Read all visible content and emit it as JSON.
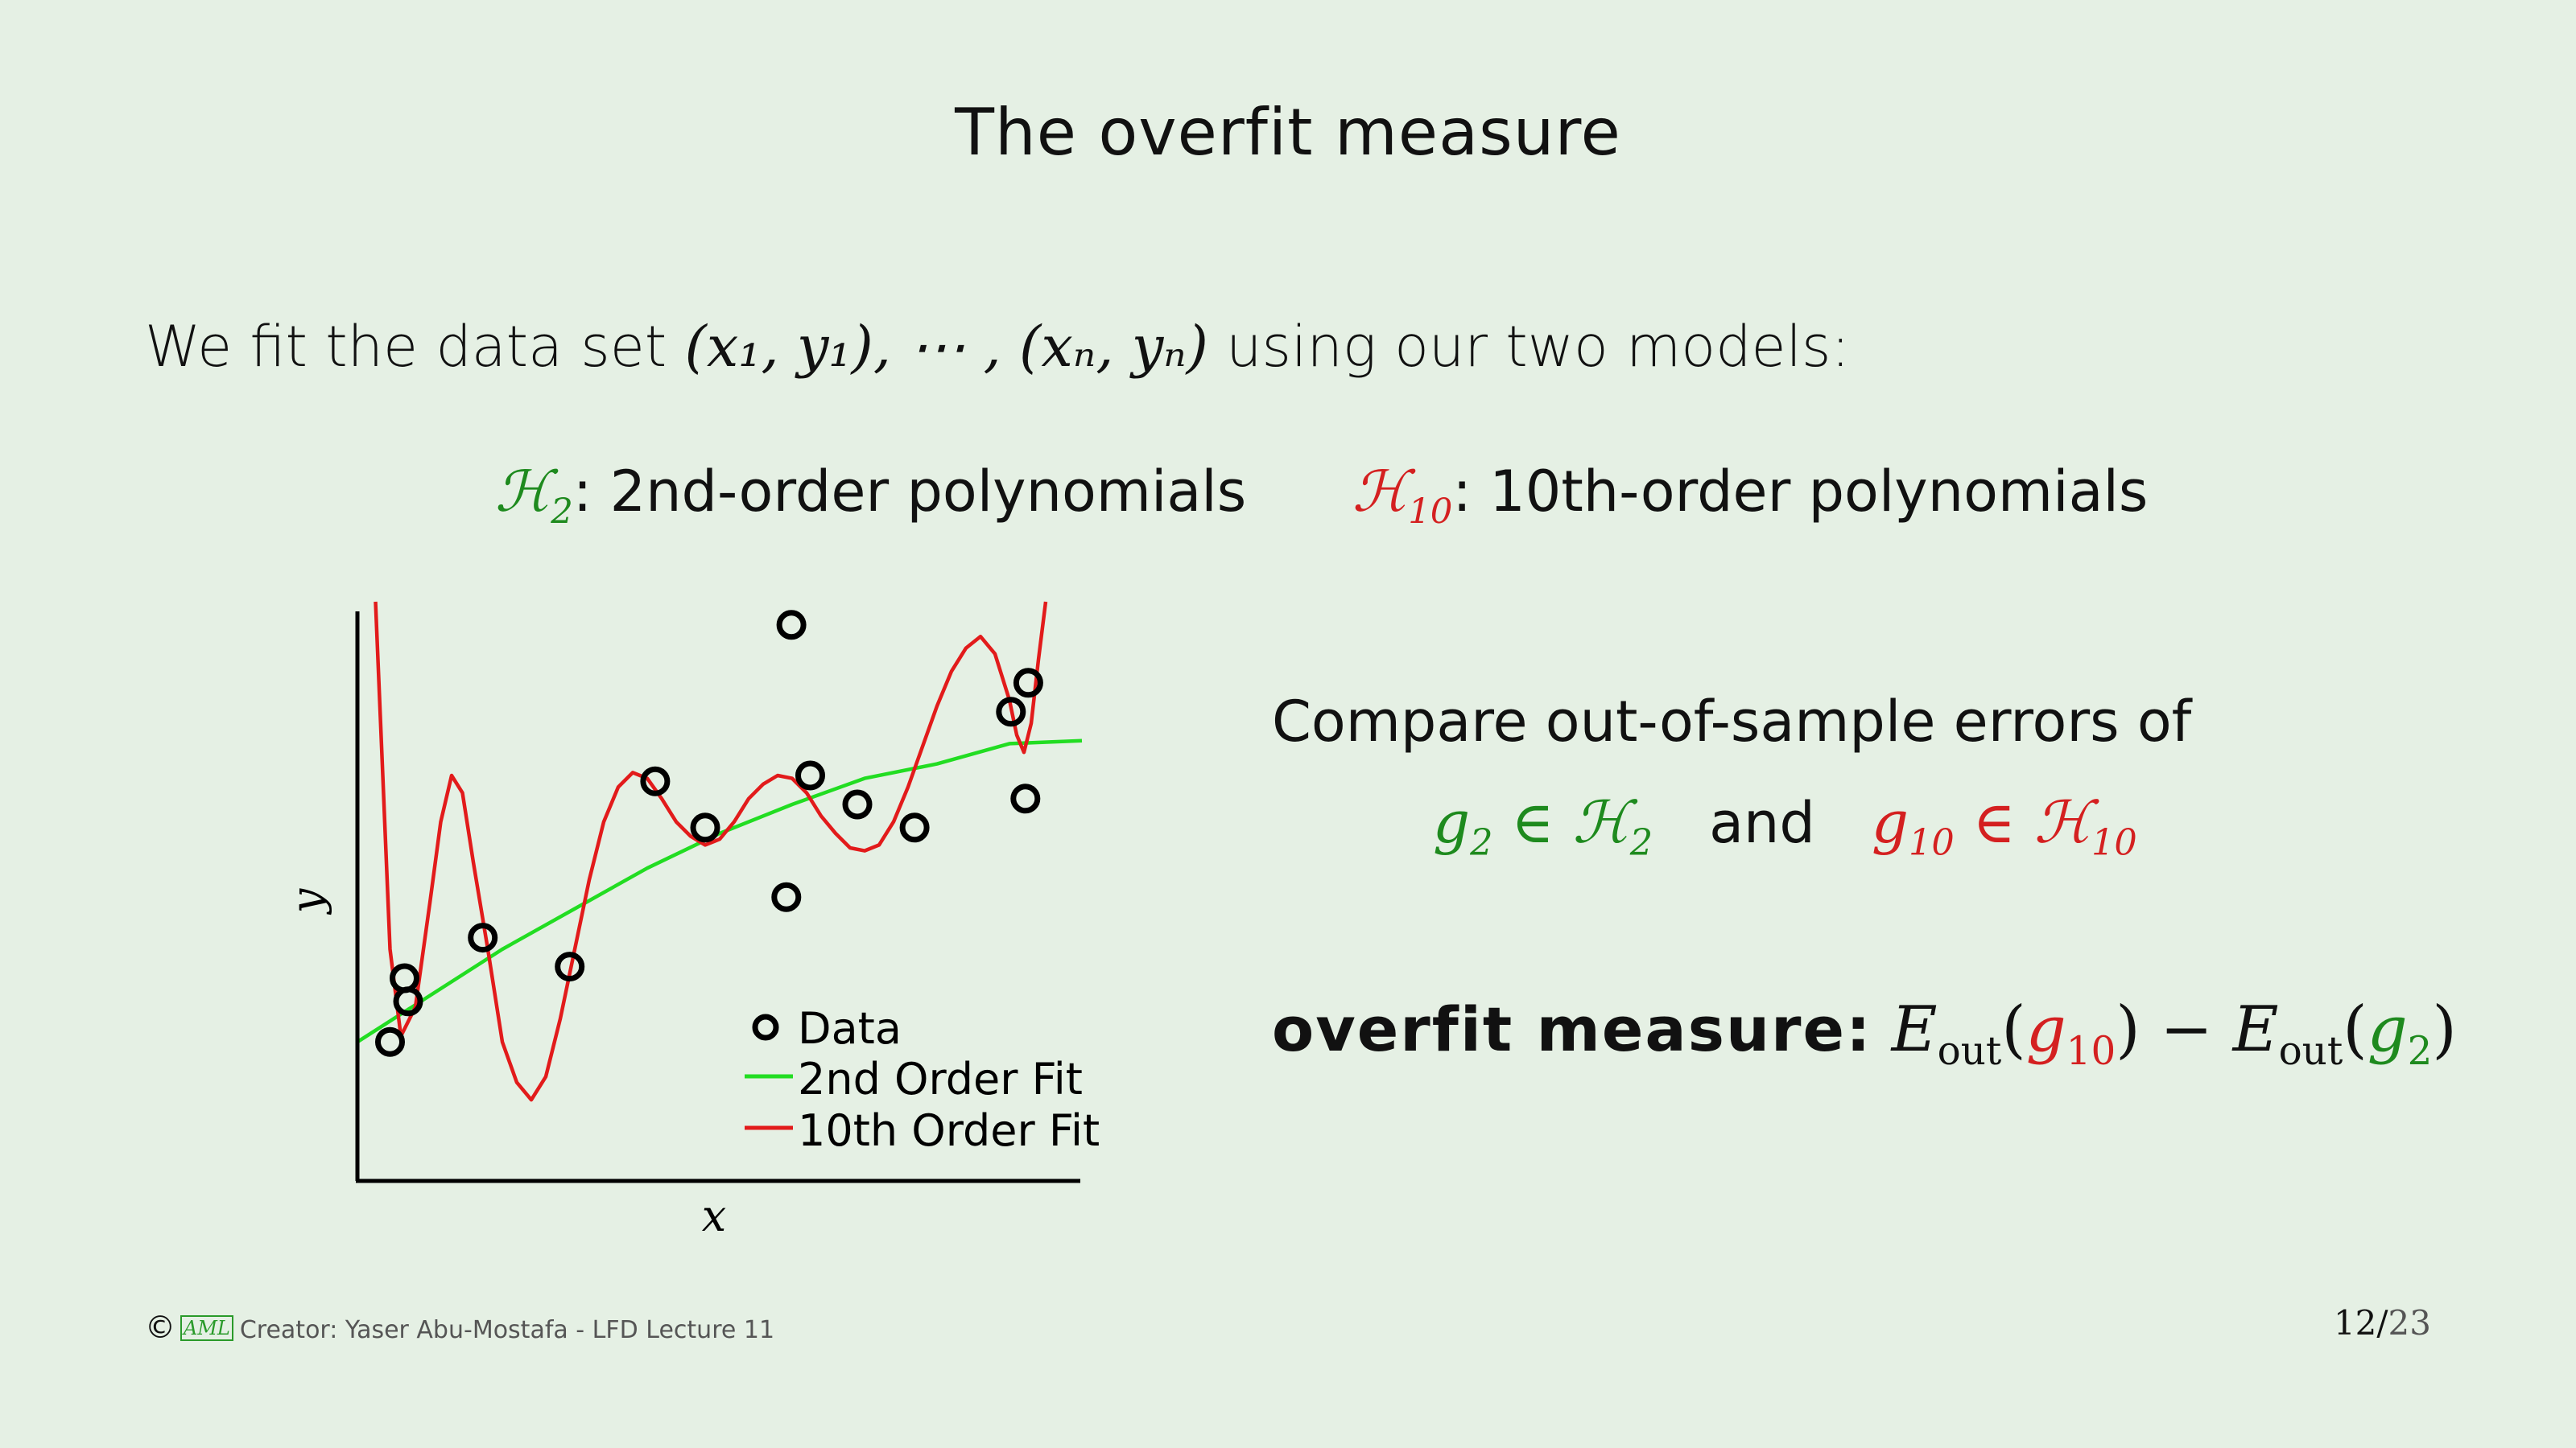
{
  "slide": {
    "title": "The overfit measure",
    "intro_text": "We fit the data set ",
    "intro_math": "(x₁, y₁), ⋯ , (xₙ, yₙ)",
    "intro_tail": " using our two models:",
    "models": [
      {
        "symbol": "ℋ",
        "sub": "2",
        "sep": ":",
        "desc": " 2nd-order polynomials",
        "color": "#1e8a1e"
      },
      {
        "symbol": "ℋ",
        "sub": "10",
        "sep": ":",
        "desc": " 10th-order polynomials",
        "color": "#d42020"
      }
    ],
    "compare_text": "Compare out-of-sample errors of",
    "compare": {
      "g2": "g",
      "g2_sub": "2",
      "in1": "∈",
      "h2": "ℋ",
      "h2_sub": "2",
      "and": "and",
      "g10": "g",
      "g10_sub": "10",
      "in2": "∈",
      "h10": "ℋ",
      "h10_sub": "10"
    },
    "overfit": {
      "label": "overfit measure:",
      "E": "E",
      "out": "out",
      "g10": "g",
      "g10_sub": "10",
      "minus": "−",
      "g2": "g",
      "g2_sub": "2"
    }
  },
  "chart_data": {
    "type": "scatter",
    "xlabel": "x",
    "ylabel": "y",
    "xlim": [
      0,
      1
    ],
    "ylim": [
      0,
      1
    ],
    "legend": {
      "placement": "bottom-right",
      "entries": [
        "Data",
        "2nd Order Fit",
        "10th Order Fit"
      ]
    },
    "colors": {
      "data": "#000000",
      "fit2": "#22dd22",
      "fit10": "#e21b1b"
    },
    "series": [
      {
        "name": "Data",
        "kind": "points",
        "x": [
          0.045,
          0.065,
          0.07,
          0.173,
          0.293,
          0.411,
          0.48,
          0.592,
          0.599,
          0.625,
          0.69,
          0.769,
          0.902,
          0.922,
          0.926
        ],
        "y": [
          0.24,
          0.35,
          0.31,
          0.42,
          0.37,
          0.69,
          0.61,
          0.49,
          0.96,
          0.7,
          0.65,
          0.61,
          0.81,
          0.66,
          0.86
        ]
      },
      {
        "name": "2nd Order Fit",
        "kind": "line",
        "x": [
          0.0,
          0.1,
          0.2,
          0.3,
          0.4,
          0.5,
          0.6,
          0.7,
          0.8,
          0.9,
          1.0
        ],
        "y": [
          0.24,
          0.32,
          0.4,
          0.47,
          0.54,
          0.6,
          0.65,
          0.695,
          0.72,
          0.755,
          0.76
        ]
      },
      {
        "name": "10th Order Fit",
        "kind": "line",
        "x": [
          0.025,
          0.035,
          0.045,
          0.06,
          0.08,
          0.1,
          0.115,
          0.13,
          0.145,
          0.16,
          0.18,
          0.2,
          0.22,
          0.24,
          0.26,
          0.28,
          0.3,
          0.32,
          0.34,
          0.36,
          0.38,
          0.4,
          0.42,
          0.44,
          0.46,
          0.48,
          0.5,
          0.52,
          0.54,
          0.56,
          0.58,
          0.6,
          0.62,
          0.64,
          0.66,
          0.68,
          0.7,
          0.72,
          0.74,
          0.76,
          0.78,
          0.8,
          0.82,
          0.84,
          0.86,
          0.88,
          0.9,
          0.91,
          0.92,
          0.93,
          0.94,
          0.95
        ],
        "y": [
          1.0,
          0.7,
          0.4,
          0.25,
          0.3,
          0.48,
          0.62,
          0.7,
          0.67,
          0.55,
          0.4,
          0.24,
          0.17,
          0.14,
          0.18,
          0.28,
          0.4,
          0.52,
          0.62,
          0.68,
          0.705,
          0.695,
          0.66,
          0.62,
          0.595,
          0.58,
          0.59,
          0.62,
          0.66,
          0.685,
          0.7,
          0.695,
          0.67,
          0.63,
          0.6,
          0.575,
          0.57,
          0.58,
          0.62,
          0.68,
          0.75,
          0.82,
          0.88,
          0.92,
          0.94,
          0.91,
          0.83,
          0.77,
          0.74,
          0.79,
          0.9,
          1.0
        ]
      }
    ]
  },
  "footer": {
    "copyright": "©",
    "logo": "AML",
    "credit": "Creator: Yaser Abu-Mostafa - LFD Lecture 11",
    "page_current": "12",
    "page_sep": "/",
    "page_total": "23"
  }
}
